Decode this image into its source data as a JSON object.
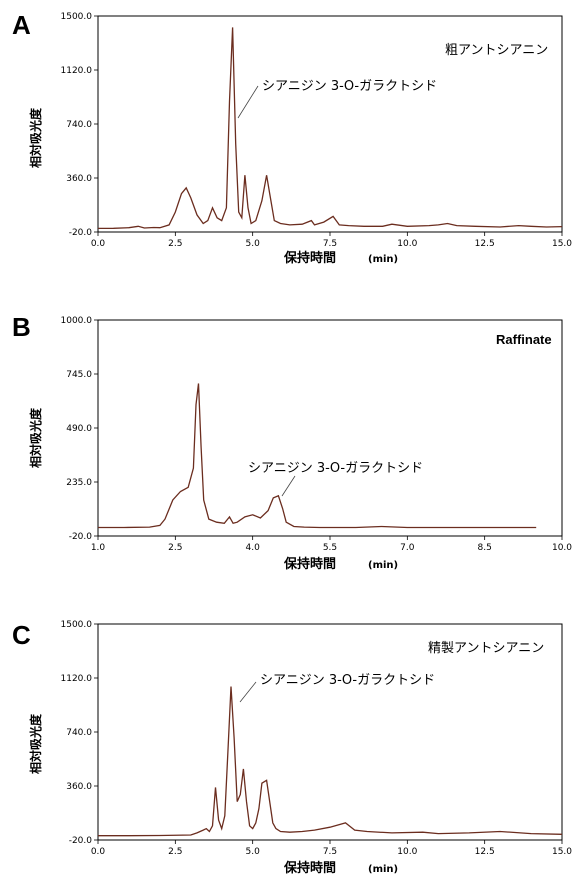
{
  "chart_data": [
    {
      "panel_label": "A",
      "type": "line",
      "title": "粗アントシアニン",
      "xlabel": "保持時間",
      "xunit": "(min)",
      "ylabel": "相対吸光度",
      "xlim": [
        0,
        15
      ],
      "ylim": [
        -20,
        1500
      ],
      "xticks": [
        "0.0",
        "2.5",
        "5.0",
        "7.5",
        "10.0",
        "12.5",
        "15.0"
      ],
      "yticks": [
        "-20.0",
        "360.0",
        "740.0",
        "1120.0",
        "1500.0"
      ],
      "xtick_values": [
        0,
        2.5,
        5,
        7.5,
        10,
        12.5,
        15
      ],
      "ytick_values": [
        -20,
        360,
        740,
        1120,
        1500
      ],
      "annotation": {
        "text": "シアニジン 3-O-ガラクトシド",
        "x": 4.5,
        "y": 820
      },
      "series": [
        {
          "x": [
            0,
            0.5,
            1.0,
            1.3,
            1.5,
            1.8,
            2.0,
            2.3,
            2.5,
            2.7,
            2.85,
            3.0,
            3.2,
            3.4,
            3.55,
            3.7,
            3.85,
            4.0,
            4.15,
            4.25,
            4.35,
            4.45,
            4.55,
            4.65,
            4.75,
            4.85,
            4.95,
            5.1,
            5.3,
            5.45,
            5.55,
            5.7,
            5.9,
            6.2,
            6.6,
            6.9,
            7.0,
            7.3,
            7.6,
            7.8,
            8.1,
            8.6,
            9.2,
            9.5,
            10.0,
            10.7,
            11.0,
            11.3,
            11.6,
            12.2,
            13.0,
            13.6,
            14.0,
            14.5,
            15.0
          ],
          "y": [
            5,
            6,
            10,
            20,
            8,
            12,
            10,
            30,
            120,
            250,
            290,
            220,
            100,
            40,
            60,
            150,
            80,
            60,
            150,
            900,
            1420,
            600,
            120,
            80,
            380,
            150,
            40,
            60,
            200,
            380,
            250,
            60,
            40,
            30,
            35,
            60,
            30,
            50,
            90,
            30,
            25,
            20,
            20,
            35,
            20,
            25,
            30,
            40,
            25,
            20,
            15,
            25,
            20,
            15,
            18
          ]
        }
      ]
    },
    {
      "panel_label": "B",
      "type": "line",
      "title": "Raffinate",
      "xlabel": "保持時間",
      "xunit": "(min)",
      "ylabel": "相対吸光度",
      "xlim": [
        1.0,
        10.0
      ],
      "ylim": [
        -20,
        1000
      ],
      "xticks": [
        "1.0",
        "2.5",
        "4.0",
        "5.5",
        "7.0",
        "8.5",
        "10.0"
      ],
      "yticks": [
        "-20.0",
        "235.0",
        "490.0",
        "745.0",
        "1000.0"
      ],
      "xtick_values": [
        1,
        2.5,
        4,
        5.5,
        7,
        8.5,
        10
      ],
      "ytick_values": [
        -20,
        235,
        490,
        745,
        1000
      ],
      "annotation": {
        "text": "シアニジン 3-O-ガラクトシド",
        "x": 4.8,
        "y": 320
      },
      "series": [
        {
          "x": [
            1.0,
            1.5,
            2.0,
            2.2,
            2.3,
            2.45,
            2.6,
            2.75,
            2.85,
            2.9,
            2.95,
            3.0,
            3.05,
            3.15,
            3.3,
            3.45,
            3.55,
            3.62,
            3.7,
            3.85,
            4.0,
            4.15,
            4.3,
            4.4,
            4.5,
            4.58,
            4.65,
            4.8,
            5.0,
            5.3,
            5.5,
            6.0,
            6.5,
            7.0,
            7.5,
            8.0,
            8.5,
            9.0,
            9.5
          ],
          "y": [
            20,
            20,
            22,
            30,
            60,
            150,
            190,
            210,
            300,
            600,
            700,
            400,
            150,
            60,
            45,
            40,
            70,
            40,
            45,
            70,
            80,
            65,
            100,
            160,
            170,
            110,
            45,
            25,
            22,
            20,
            20,
            20,
            25,
            20,
            20,
            20,
            20,
            20,
            20
          ]
        }
      ]
    },
    {
      "panel_label": "C",
      "type": "line",
      "title": "精製アントシアニン",
      "xlabel": "保持時間",
      "xunit": "(min)",
      "ylabel": "相対吸光度",
      "xlim": [
        0,
        15
      ],
      "ylim": [
        -20,
        1500
      ],
      "xticks": [
        "0.0",
        "2.5",
        "5.0",
        "7.5",
        "10.0",
        "12.5",
        "15.0"
      ],
      "yticks": [
        "-20.0",
        "360.0",
        "740.0",
        "1120.0",
        "1500.0"
      ],
      "xtick_values": [
        0,
        2.5,
        5,
        7.5,
        10,
        12.5,
        15
      ],
      "ytick_values": [
        -20,
        360,
        740,
        1120,
        1500
      ],
      "annotation": {
        "text": "シアニジン 3-O-ガラクトシド",
        "x": 4.5,
        "y": 920
      },
      "series": [
        {
          "x": [
            0,
            1.0,
            2.0,
            3.0,
            3.2,
            3.4,
            3.5,
            3.6,
            3.7,
            3.8,
            3.9,
            4.0,
            4.1,
            4.2,
            4.3,
            4.4,
            4.5,
            4.6,
            4.7,
            4.8,
            4.9,
            5.0,
            5.1,
            5.2,
            5.3,
            5.45,
            5.55,
            5.65,
            5.75,
            5.9,
            6.2,
            6.6,
            7.0,
            7.5,
            8.0,
            8.3,
            8.7,
            9.5,
            10.5,
            11.0,
            12.0,
            13.0,
            14.0,
            15.0
          ],
          "y": [
            10,
            10,
            12,
            15,
            30,
            50,
            60,
            40,
            80,
            350,
            120,
            60,
            150,
            600,
            1060,
            700,
            250,
            300,
            480,
            250,
            80,
            60,
            100,
            200,
            380,
            400,
            250,
            100,
            60,
            40,
            35,
            40,
            50,
            70,
            100,
            50,
            40,
            30,
            35,
            25,
            30,
            40,
            25,
            20
          ]
        }
      ]
    }
  ]
}
